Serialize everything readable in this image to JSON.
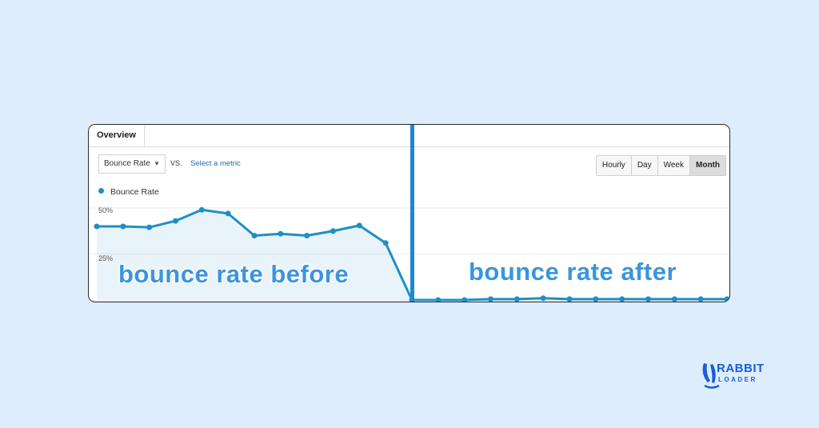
{
  "tabs": [
    {
      "label": "Overview"
    }
  ],
  "toolbar": {
    "metric_value": "Bounce Rate",
    "vs_label": "VS.",
    "select_metric_label": "Select a metric",
    "period_buttons": [
      "Hourly",
      "Day",
      "Week",
      "Month"
    ],
    "selected_period": "Month"
  },
  "legend": {
    "label": "Bounce Rate"
  },
  "overlays": {
    "before": "bounce rate before",
    "after": "bounce rate after"
  },
  "brand": {
    "line1": "RABBIT",
    "line2": "LOADER",
    "color": "#1a5fd6"
  },
  "colors": {
    "background": "#deedfc",
    "line": "#1e8fc6",
    "divider": "#1e88d0",
    "overlay_text": "#3a95dd"
  },
  "chart_data": {
    "type": "line",
    "ylim": [
      0,
      60
    ],
    "yticks": [
      "50%",
      "25%"
    ],
    "ytick_values": [
      50,
      25
    ],
    "series": [
      {
        "name": "Bounce Rate",
        "values": [
          40,
          40,
          39.5,
          43,
          49,
          47,
          35,
          36,
          35,
          37.5,
          40.5,
          31,
          0,
          0,
          0,
          0.5,
          0.5,
          1,
          0.5,
          0.5,
          0.5,
          0.5,
          0.5,
          0.5,
          0.5
        ]
      }
    ],
    "grid": true,
    "legend_position": "top-left"
  }
}
